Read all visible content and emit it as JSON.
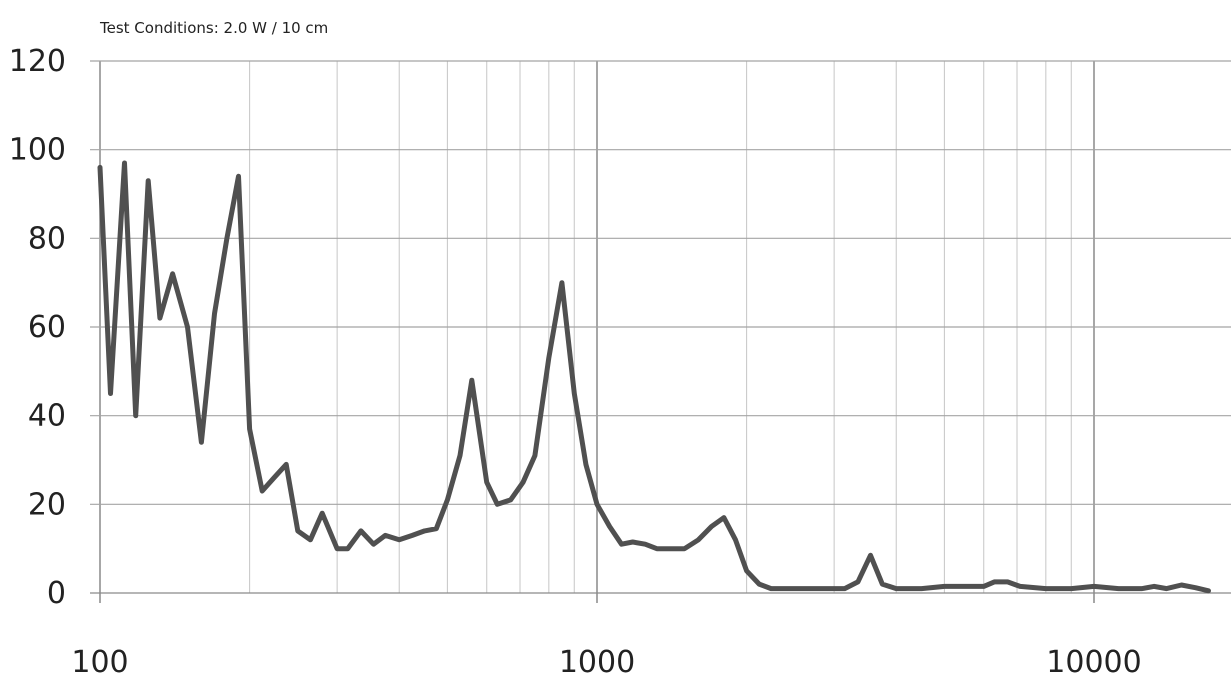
{
  "chart_data": {
    "type": "line",
    "subtitle": "Test Conditions: 2.0 W / 10 cm",
    "x_scale": "log",
    "xlim": [
      100,
      17000
    ],
    "ylim": [
      0,
      120
    ],
    "x_ticks": [
      {
        "value": 100,
        "label": "100"
      },
      {
        "value": 1000,
        "label": "1000"
      },
      {
        "value": 10000,
        "label": "10000"
      }
    ],
    "y_ticks": [
      {
        "value": 0,
        "label": "0"
      },
      {
        "value": 20,
        "label": "20"
      },
      {
        "value": 40,
        "label": "40"
      },
      {
        "value": 60,
        "label": "60"
      },
      {
        "value": 80,
        "label": "80"
      },
      {
        "value": 100,
        "label": "100"
      },
      {
        "value": 120,
        "label": "120"
      }
    ],
    "grid": true,
    "line_color": "#505050",
    "series": [
      {
        "x": [
          100,
          105,
          112,
          118,
          125,
          132,
          140,
          150,
          160,
          170,
          180,
          190,
          200,
          212,
          224,
          237,
          250,
          265,
          280,
          300,
          315,
          335,
          355,
          375,
          400,
          425,
          450,
          475,
          500,
          530,
          560,
          600,
          630,
          670,
          710,
          750,
          800,
          850,
          900,
          950,
          1000,
          1060,
          1120,
          1180,
          1250,
          1320,
          1400,
          1500,
          1600,
          1700,
          1800,
          1900,
          2000,
          2120,
          2240,
          2500,
          2800,
          3000,
          3150,
          3350,
          3550,
          3750,
          4000,
          4500,
          5000,
          5600,
          6000,
          6300,
          6700,
          7100,
          8000,
          9000,
          10000,
          11200,
          12500,
          13200,
          14000,
          15000,
          16000,
          17000
        ],
        "y": [
          96,
          45,
          97,
          40,
          93,
          62,
          72,
          60,
          34,
          63,
          80,
          94,
          37,
          23,
          26,
          29,
          14,
          12,
          18,
          10,
          10,
          14,
          11,
          13,
          12,
          13,
          14,
          14.5,
          21,
          31,
          48,
          25,
          20,
          21,
          25,
          31,
          53,
          70,
          45,
          29,
          20,
          15,
          11,
          11.5,
          11,
          10,
          10,
          10,
          12,
          15,
          17,
          12,
          5,
          2,
          1,
          1,
          1,
          1,
          1,
          2.5,
          8.5,
          2,
          1,
          1,
          1.5,
          1.5,
          1.5,
          2.5,
          2.5,
          1.5,
          1,
          1,
          1.5,
          1,
          1,
          1.5,
          1,
          1.8,
          1.2,
          0.5
        ]
      }
    ]
  }
}
